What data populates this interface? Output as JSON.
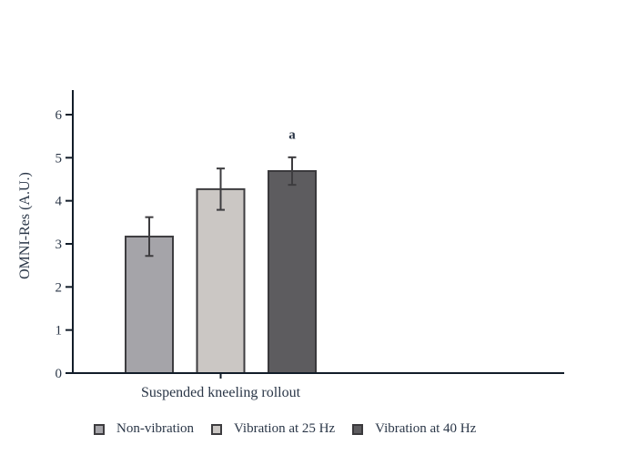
{
  "chart_data": {
    "type": "bar",
    "title": "",
    "xlabel": "",
    "ylabel": "OMNI-Res (A.U.)",
    "categories": [
      "Suspended kneeling rollout"
    ],
    "series": [
      {
        "name": "Non-vibration",
        "values": [
          3.17
        ],
        "errors": [
          0.45
        ],
        "color": "#a5a4a9",
        "border": "#3d3c3f"
      },
      {
        "name": "Vibration at 25 Hz",
        "values": [
          4.27
        ],
        "errors": [
          0.48
        ],
        "color": "#cbc7c4",
        "border": "#3d3c3f"
      },
      {
        "name": "Vibration at 40 Hz",
        "values": [
          4.69
        ],
        "errors": [
          0.32
        ],
        "color": "#5d5c5f",
        "border": "#3a393c"
      }
    ],
    "annotations": [
      {
        "text": "a",
        "series_index": 2,
        "y": 5.55
      }
    ],
    "ylim": [
      0,
      6.57
    ],
    "yticks": [
      0,
      1,
      2,
      3,
      4,
      5,
      6
    ],
    "grid": false,
    "legend_position": "bottom"
  },
  "colors": {
    "axis": "#121d29",
    "text": "#2a3647",
    "error_bar": "#3d3c3f",
    "background": "#ffffff"
  }
}
